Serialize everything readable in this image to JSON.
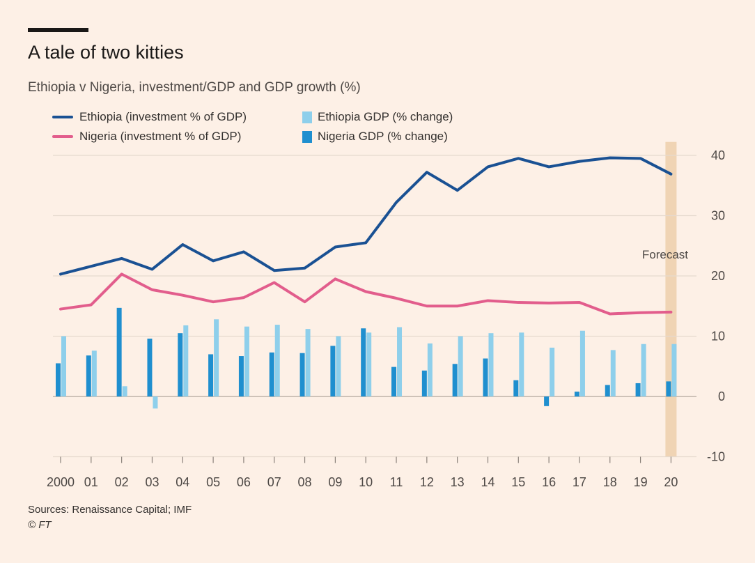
{
  "header": {
    "title": "A tale of two kitties",
    "subtitle": "Ethiopia v Nigeria, investment/GDP and GDP growth (%)"
  },
  "footer": {
    "sources": "Sources: Renaissance Capital; IMF",
    "credit": "© FT"
  },
  "colors": {
    "background": "#fdf0e6",
    "ethiopia_line": "#1a5193",
    "nigeria_line": "#e25d8c",
    "ethiopia_bar": "#8ecfeb",
    "nigeria_bar": "#1f8fcf",
    "forecast_band": "#f0d4b4",
    "grid": "#e6d9ce"
  },
  "chart_data": {
    "type": "bar+line",
    "title": "A tale of two kitties",
    "subtitle": "Ethiopia v Nigeria, investment/GDP and GDP growth (%)",
    "categories": [
      "2000",
      "01",
      "02",
      "03",
      "04",
      "05",
      "06",
      "07",
      "08",
      "09",
      "10",
      "11",
      "12",
      "13",
      "14",
      "15",
      "16",
      "17",
      "18",
      "19",
      "20"
    ],
    "ylim": [
      -10,
      42
    ],
    "yticks": [
      -10,
      0,
      10,
      20,
      30,
      40
    ],
    "ytick_labels": [
      "-10",
      "0",
      "10",
      "20",
      "30",
      "40"
    ],
    "grid": true,
    "legend_position": "top-left",
    "lines": [
      {
        "name": "Ethiopia (investment % of GDP)",
        "color_key": "ethiopia_line",
        "values": [
          20.3,
          21.6,
          22.9,
          21.1,
          25.2,
          22.5,
          24.0,
          20.9,
          21.3,
          24.8,
          25.5,
          32.2,
          37.2,
          34.2,
          38.1,
          39.5,
          38.1,
          39.0,
          39.6,
          39.5,
          36.9
        ]
      },
      {
        "name": "Nigeria (investment % of GDP)",
        "color_key": "nigeria_line",
        "values": [
          14.5,
          15.2,
          20.3,
          17.7,
          16.8,
          15.7,
          16.4,
          18.9,
          15.7,
          19.5,
          17.4,
          16.3,
          15.0,
          15.0,
          15.9,
          15.6,
          15.5,
          15.6,
          13.7,
          13.9,
          14.0
        ]
      }
    ],
    "bars": [
      {
        "name": "Ethiopia GDP (% change)",
        "color_key": "ethiopia_bar",
        "values": [
          10.0,
          7.6,
          1.7,
          -2.0,
          11.8,
          12.8,
          11.6,
          11.9,
          11.2,
          10.0,
          10.6,
          11.5,
          8.8,
          10.0,
          10.5,
          10.6,
          8.1,
          10.9,
          7.7,
          8.7,
          8.7
        ]
      },
      {
        "name": "Nigeria GDP (% change)",
        "color_key": "nigeria_bar",
        "values": [
          5.5,
          6.8,
          14.7,
          9.6,
          10.5,
          7.0,
          6.7,
          7.3,
          7.2,
          8.4,
          11.3,
          4.9,
          4.3,
          5.4,
          6.3,
          2.7,
          -1.6,
          0.8,
          1.9,
          2.2,
          2.5
        ]
      }
    ],
    "forecast": {
      "label": "Forecast",
      "category": "20"
    }
  }
}
